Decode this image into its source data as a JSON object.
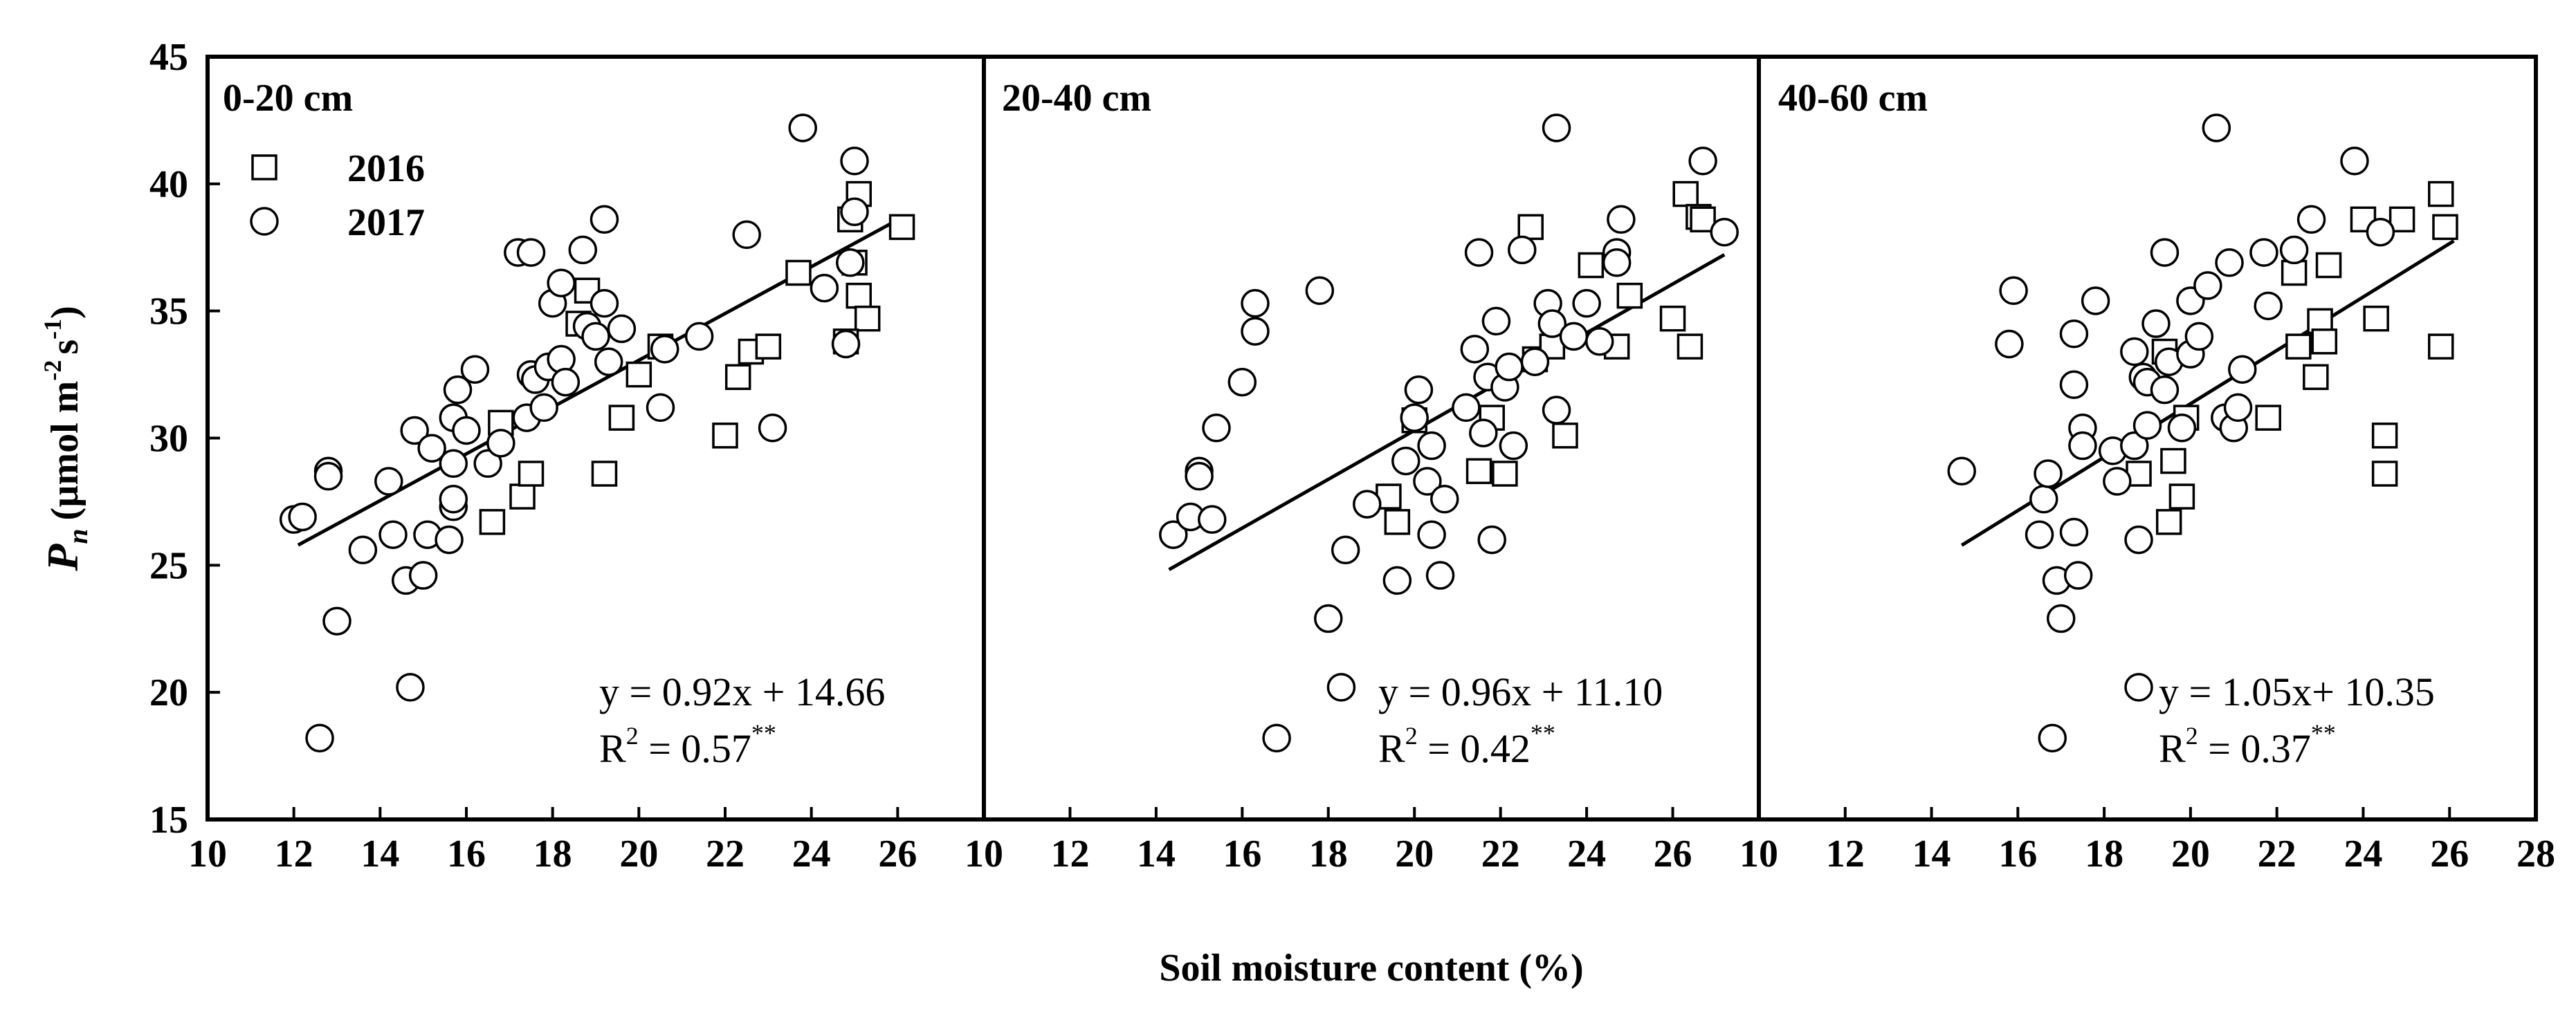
{
  "chart_data": {
    "type": "scatter",
    "x_axis_title": "Soil moisture content (%)",
    "y_axis_title": {
      "symbol": "P",
      "subscript": "n",
      "unit_open": "(µmol m",
      "exp1": "-2",
      "unit_mid": "s",
      "exp2": "-1",
      "unit_close": ")"
    },
    "ylim": [
      15,
      45
    ],
    "yticks": [
      "15",
      "20",
      "25",
      "30",
      "35",
      "40",
      "45"
    ],
    "legend": [
      {
        "label": "2016",
        "marker": "square"
      },
      {
        "label": "2017",
        "marker": "circle"
      }
    ],
    "panels": [
      {
        "label": "0-20 cm",
        "xlim": [
          10,
          28
        ],
        "xticks": [
          "10",
          "12",
          "14",
          "16",
          "18",
          "20",
          "22",
          "24",
          "26"
        ],
        "equation": "y = 0.92x + 14.66",
        "r2_text": "R",
        "r2_exp": "2",
        "r2_value": " = 0.57",
        "r2_sig": "**",
        "fit_x": [
          12.1,
          26.1
        ],
        "series": [
          {
            "name": "2016",
            "points": [
              [
                16.6,
                26.7
              ],
              [
                16.8,
                30.6
              ],
              [
                17.3,
                27.7
              ],
              [
                17.5,
                28.6
              ],
              [
                18.6,
                34.5
              ],
              [
                18.8,
                35.8
              ],
              [
                19.2,
                28.6
              ],
              [
                19.6,
                30.8
              ],
              [
                20.0,
                32.5
              ],
              [
                20.5,
                33.6
              ],
              [
                22.0,
                30.1
              ],
              [
                22.3,
                32.4
              ],
              [
                22.6,
                33.4
              ],
              [
                23.0,
                33.6
              ],
              [
                23.7,
                36.5
              ],
              [
                24.9,
                38.6
              ],
              [
                25.0,
                36.9
              ],
              [
                25.1,
                35.6
              ],
              [
                25.1,
                39.6
              ],
              [
                25.3,
                34.7
              ],
              [
                26.1,
                38.3
              ],
              [
                24.8,
                33.8
              ]
            ]
          },
          {
            "name": "2017",
            "points": [
              [
                12.0,
                26.8
              ],
              [
                12.2,
                26.9
              ],
              [
                12.6,
                18.2
              ],
              [
                12.8,
                28.7
              ],
              [
                12.8,
                28.5
              ],
              [
                13.0,
                22.8
              ],
              [
                13.6,
                25.6
              ],
              [
                14.2,
                28.3
              ],
              [
                14.3,
                26.2
              ],
              [
                14.6,
                24.4
              ],
              [
                14.7,
                20.2
              ],
              [
                14.8,
                30.3
              ],
              [
                15.0,
                24.6
              ],
              [
                15.1,
                26.2
              ],
              [
                15.2,
                29.6
              ],
              [
                15.6,
                26.0
              ],
              [
                15.7,
                27.3
              ],
              [
                15.7,
                27.6
              ],
              [
                15.7,
                29.0
              ],
              [
                15.7,
                30.8
              ],
              [
                15.8,
                31.9
              ],
              [
                16.0,
                30.3
              ],
              [
                16.2,
                32.7
              ],
              [
                16.5,
                29.0
              ],
              [
                16.8,
                29.8
              ],
              [
                17.2,
                37.3
              ],
              [
                17.4,
                30.8
              ],
              [
                17.5,
                32.5
              ],
              [
                17.5,
                37.3
              ],
              [
                17.6,
                32.3
              ],
              [
                17.8,
                31.2
              ],
              [
                17.9,
                32.8
              ],
              [
                18.0,
                35.3
              ],
              [
                18.2,
                36.1
              ],
              [
                18.2,
                33.1
              ],
              [
                18.3,
                32.2
              ],
              [
                18.7,
                37.4
              ],
              [
                18.8,
                34.4
              ],
              [
                19.0,
                34.0
              ],
              [
                19.2,
                38.6
              ],
              [
                19.2,
                35.3
              ],
              [
                19.3,
                33.0
              ],
              [
                19.6,
                34.3
              ],
              [
                20.6,
                33.5
              ],
              [
                20.5,
                31.2
              ],
              [
                21.4,
                34.0
              ],
              [
                22.5,
                38.0
              ],
              [
                23.1,
                30.4
              ],
              [
                23.8,
                42.2
              ],
              [
                24.3,
                35.9
              ],
              [
                24.8,
                33.7
              ],
              [
                24.9,
                36.9
              ],
              [
                25.0,
                40.9
              ],
              [
                25.0,
                38.9
              ]
            ]
          }
        ]
      },
      {
        "label": "20-40 cm",
        "xlim": [
          10,
          28
        ],
        "xticks": [
          "10",
          "12",
          "14",
          "16",
          "18",
          "20",
          "22",
          "24",
          "26"
        ],
        "equation": "y = 0.96x + 11.10",
        "r2_text": "R",
        "r2_exp": "2",
        "r2_value": " = 0.42",
        "r2_sig": "**",
        "fit_x": [
          14.3,
          27.2
        ],
        "series": [
          {
            "name": "2016",
            "points": [
              [
                19.4,
                27.7
              ],
              [
                19.6,
                26.7
              ],
              [
                20.0,
                30.7
              ],
              [
                21.5,
                28.7
              ],
              [
                21.8,
                30.8
              ],
              [
                22.1,
                28.6
              ],
              [
                22.7,
                38.3
              ],
              [
                22.8,
                33.1
              ],
              [
                23.2,
                33.6
              ],
              [
                23.5,
                30.1
              ],
              [
                24.1,
                36.8
              ],
              [
                24.7,
                33.6
              ],
              [
                25.0,
                35.6
              ],
              [
                26.0,
                34.7
              ],
              [
                26.3,
                39.6
              ],
              [
                26.4,
                33.6
              ],
              [
                26.6,
                38.7
              ],
              [
                26.7,
                38.6
              ]
            ]
          },
          {
            "name": "2017",
            "points": [
              [
                14.4,
                26.2
              ],
              [
                14.8,
                26.9
              ],
              [
                15.0,
                28.7
              ],
              [
                15.0,
                28.5
              ],
              [
                15.3,
                26.8
              ],
              [
                15.4,
                30.4
              ],
              [
                16.0,
                32.2
              ],
              [
                16.3,
                35.3
              ],
              [
                16.3,
                34.2
              ],
              [
                16.8,
                18.2
              ],
              [
                17.8,
                35.8
              ],
              [
                18.0,
                22.9
              ],
              [
                18.3,
                20.2
              ],
              [
                18.4,
                25.6
              ],
              [
                18.9,
                27.4
              ],
              [
                19.6,
                24.4
              ],
              [
                19.8,
                29.1
              ],
              [
                20.0,
                30.8
              ],
              [
                20.1,
                31.9
              ],
              [
                20.3,
                28.3
              ],
              [
                20.4,
                29.7
              ],
              [
                20.4,
                26.2
              ],
              [
                20.6,
                24.6
              ],
              [
                20.7,
                27.6
              ],
              [
                21.2,
                31.2
              ],
              [
                21.4,
                33.5
              ],
              [
                21.5,
                37.3
              ],
              [
                21.6,
                30.2
              ],
              [
                21.7,
                32.4
              ],
              [
                21.8,
                26.0
              ],
              [
                21.9,
                34.6
              ],
              [
                22.1,
                32.0
              ],
              [
                22.2,
                32.8
              ],
              [
                22.3,
                29.7
              ],
              [
                22.5,
                37.4
              ],
              [
                22.8,
                33.0
              ],
              [
                23.1,
                35.3
              ],
              [
                23.2,
                34.5
              ],
              [
                23.3,
                42.2
              ],
              [
                23.3,
                31.1
              ],
              [
                23.7,
                34.0
              ],
              [
                24.0,
                35.3
              ],
              [
                24.3,
                33.8
              ],
              [
                24.7,
                37.3
              ],
              [
                24.7,
                36.9
              ],
              [
                24.8,
                38.6
              ],
              [
                26.7,
                40.9
              ],
              [
                27.2,
                38.1
              ]
            ]
          }
        ]
      },
      {
        "label": "40-60 cm",
        "xlim": [
          10,
          28
        ],
        "xticks": [
          "10",
          "12",
          "14",
          "16",
          "18",
          "20",
          "22",
          "24",
          "26",
          "28"
        ],
        "equation": "y = 1.05x+ 10.35",
        "r2_text": "R",
        "r2_exp": "2",
        "r2_value": " = 0.37",
        "r2_sig": "**",
        "fit_x": [
          14.7,
          26.1
        ],
        "series": [
          {
            "name": "2016",
            "points": [
              [
                18.8,
                28.6
              ],
              [
                19.4,
                33.4
              ],
              [
                19.5,
                26.7
              ],
              [
                19.6,
                29.1
              ],
              [
                19.8,
                27.7
              ],
              [
                19.9,
                30.8
              ],
              [
                21.8,
                30.8
              ],
              [
                22.4,
                36.5
              ],
              [
                22.5,
                33.6
              ],
              [
                22.9,
                32.4
              ],
              [
                23.0,
                34.6
              ],
              [
                23.1,
                33.8
              ],
              [
                23.2,
                36.8
              ],
              [
                24.0,
                38.6
              ],
              [
                24.3,
                34.7
              ],
              [
                24.5,
                30.1
              ],
              [
                24.5,
                28.6
              ],
              [
                24.9,
                38.6
              ],
              [
                25.8,
                39.6
              ],
              [
                25.8,
                33.6
              ],
              [
                25.9,
                38.3
              ]
            ]
          },
          {
            "name": "2017",
            "points": [
              [
                14.7,
                28.7
              ],
              [
                15.8,
                33.7
              ],
              [
                15.9,
                35.8
              ],
              [
                16.5,
                26.2
              ],
              [
                16.6,
                27.6
              ],
              [
                16.7,
                28.6
              ],
              [
                16.8,
                18.2
              ],
              [
                16.9,
                24.4
              ],
              [
                17.0,
                22.9
              ],
              [
                17.3,
                26.3
              ],
              [
                17.3,
                34.1
              ],
              [
                17.3,
                32.1
              ],
              [
                17.4,
                24.6
              ],
              [
                17.5,
                30.4
              ],
              [
                17.5,
                29.7
              ],
              [
                17.8,
                35.4
              ],
              [
                18.2,
                29.5
              ],
              [
                18.3,
                28.3
              ],
              [
                18.7,
                33.4
              ],
              [
                18.7,
                29.7
              ],
              [
                18.8,
                20.2
              ],
              [
                18.8,
                26.0
              ],
              [
                18.9,
                32.4
              ],
              [
                19.0,
                30.5
              ],
              [
                19.0,
                32.2
              ],
              [
                19.2,
                34.5
              ],
              [
                19.4,
                37.3
              ],
              [
                19.4,
                31.9
              ],
              [
                19.5,
                33.0
              ],
              [
                19.8,
                30.4
              ],
              [
                20.0,
                35.4
              ],
              [
                20.0,
                33.3
              ],
              [
                20.2,
                34.0
              ],
              [
                20.4,
                36.0
              ],
              [
                20.6,
                42.2
              ],
              [
                20.8,
                30.8
              ],
              [
                20.9,
                36.9
              ],
              [
                21.0,
                30.4
              ],
              [
                21.1,
                31.2
              ],
              [
                21.2,
                32.7
              ],
              [
                21.7,
                37.3
              ],
              [
                21.8,
                35.2
              ],
              [
                22.4,
                37.4
              ],
              [
                22.8,
                38.6
              ],
              [
                23.8,
                40.9
              ],
              [
                24.4,
                38.1
              ]
            ]
          }
        ]
      }
    ]
  }
}
